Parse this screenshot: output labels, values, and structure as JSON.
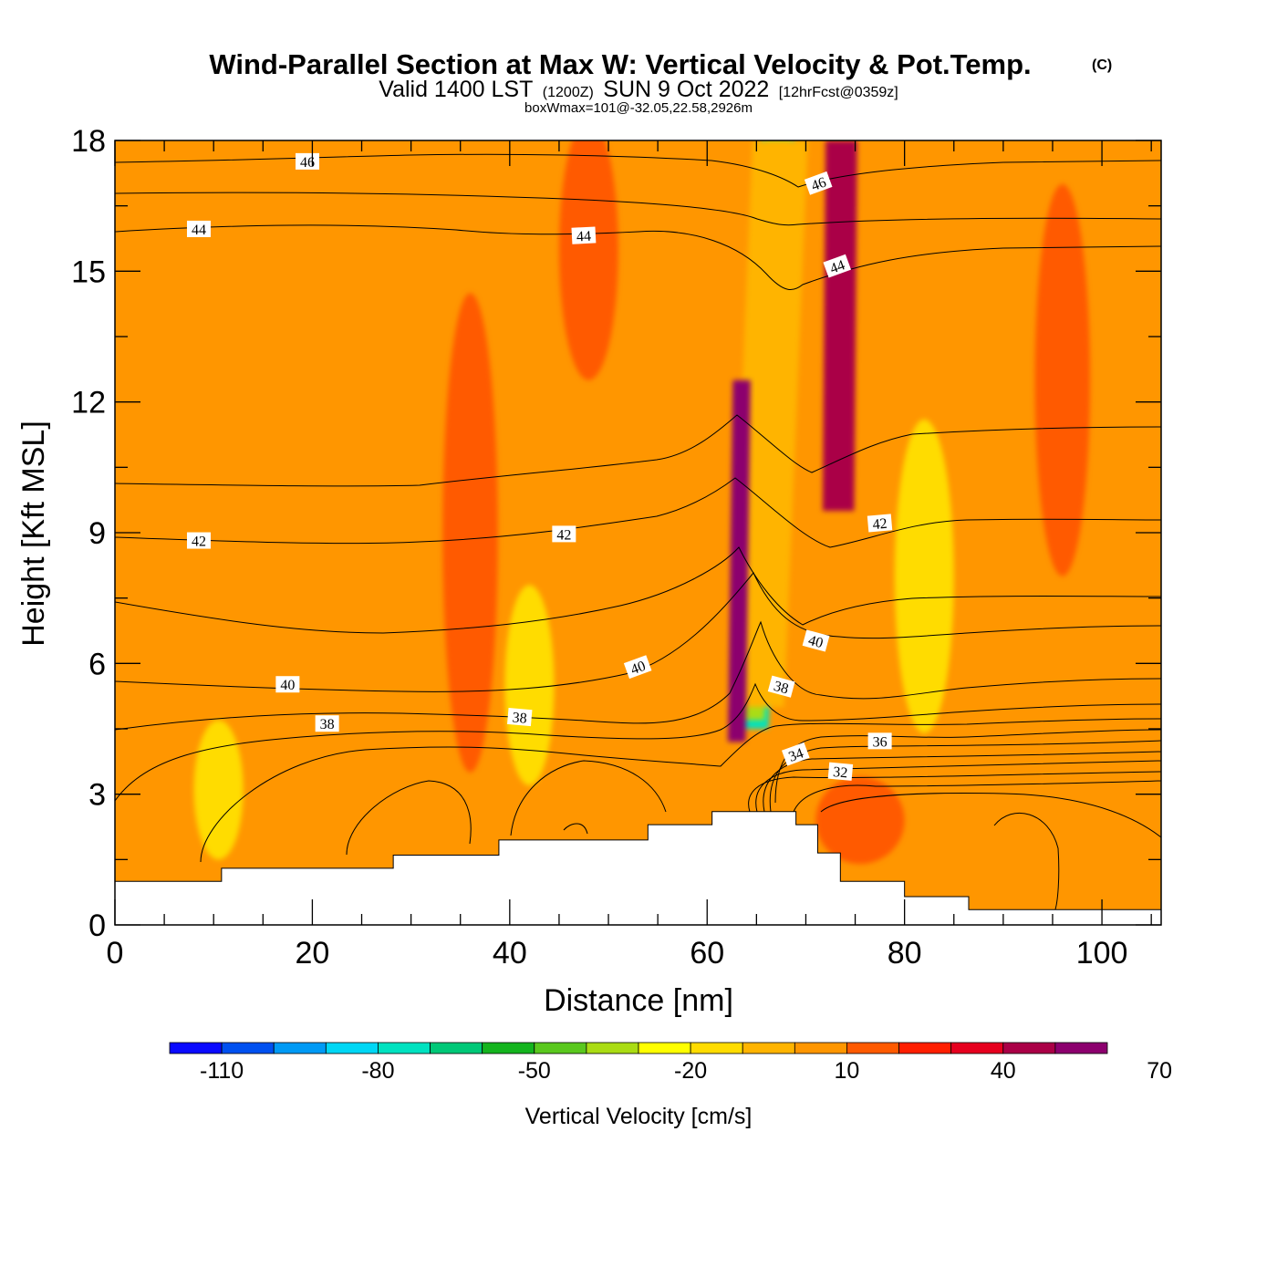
{
  "chart_data": {
    "type": "heatmap",
    "title": "Wind-Parallel Section at Max W: Vertical Velocity & Pot.Temp.",
    "copyright_mark": "(C)",
    "subtitle": {
      "prefix": "Valid 1400 LST",
      "utc": "(1200Z)",
      "date": "SUN 9 Oct 2022",
      "forecast": "[12hrFcst@0359z]"
    },
    "box_note": "boxWmax=101@-32.05,22.58,2926m",
    "xlabel": "Distance [nm]",
    "ylabel": "Height [Kft MSL]",
    "xlim": [
      0,
      106
    ],
    "ylim": [
      0,
      18
    ],
    "x_ticks": [
      "0",
      "20",
      "40",
      "60",
      "80",
      "100"
    ],
    "y_ticks": [
      "0",
      "3",
      "6",
      "9",
      "12",
      "15",
      "18"
    ],
    "x_tick_values": [
      0,
      20,
      40,
      60,
      80,
      100
    ],
    "y_tick_values": [
      0,
      3,
      6,
      9,
      12,
      15,
      18
    ],
    "colorbar": {
      "label": "Vertical Velocity [cm/s]",
      "levels_min": -120,
      "levels_step": 10,
      "tick_labels": [
        "-110",
        "-80",
        "-50",
        "-20",
        "10",
        "40",
        "70"
      ],
      "tick_values": [
        -110,
        -80,
        -50,
        -20,
        10,
        40,
        70
      ],
      "colors": [
        "#0a0aff",
        "#0050f0",
        "#009af5",
        "#00d7f5",
        "#00e2c0",
        "#00c878",
        "#14b41e",
        "#5ac81e",
        "#aadc14",
        "#ffff00",
        "#ffdc00",
        "#ffb400",
        "#ff9600",
        "#ff5a00",
        "#ff1e00",
        "#e6001e",
        "#aa0046",
        "#8c006e"
      ]
    },
    "theta_contour_labels": [
      {
        "text": "46",
        "x": 19.5,
        "y": 17.5,
        "angle": 0
      },
      {
        "text": "44",
        "x": 8.5,
        "y": 15.95,
        "angle": 0
      },
      {
        "text": "44",
        "x": 47.5,
        "y": 15.8,
        "angle": -3
      },
      {
        "text": "46",
        "x": 71.3,
        "y": 17.0,
        "angle": -20
      },
      {
        "text": "44",
        "x": 73.2,
        "y": 15.1,
        "angle": -20
      },
      {
        "text": "42",
        "x": 8.5,
        "y": 8.8,
        "angle": 0
      },
      {
        "text": "42",
        "x": 45.5,
        "y": 8.95,
        "angle": 0
      },
      {
        "text": "42",
        "x": 77.5,
        "y": 9.2,
        "angle": -5
      },
      {
        "text": "40",
        "x": 17.5,
        "y": 5.5,
        "angle": 0
      },
      {
        "text": "40",
        "x": 53.0,
        "y": 5.9,
        "angle": -20
      },
      {
        "text": "40",
        "x": 71.0,
        "y": 6.5,
        "angle": 15
      },
      {
        "text": "38",
        "x": 21.5,
        "y": 4.6,
        "angle": 0
      },
      {
        "text": "38",
        "x": 41.0,
        "y": 4.75,
        "angle": 5
      },
      {
        "text": "38",
        "x": 67.5,
        "y": 5.45,
        "angle": 15
      },
      {
        "text": "36",
        "x": 77.5,
        "y": 4.2,
        "angle": 0
      },
      {
        "text": "34",
        "x": 69.0,
        "y": 3.9,
        "angle": -20
      },
      {
        "text": "32",
        "x": 73.5,
        "y": 3.5,
        "angle": 5
      }
    ],
    "terrain": {
      "x": [
        0,
        10.8,
        10.8,
        28.2,
        28.2,
        38.9,
        38.9,
        54.0,
        54.0,
        60.5,
        60.5,
        69.0,
        69.0,
        71.2,
        71.2,
        73.5,
        73.5,
        80.0,
        80.0,
        86.5,
        86.5,
        106
      ],
      "height": [
        1.0,
        1.0,
        1.3,
        1.3,
        1.6,
        1.6,
        1.95,
        1.95,
        2.3,
        2.3,
        2.6,
        2.6,
        2.3,
        2.3,
        1.65,
        1.65,
        1.0,
        1.0,
        0.65,
        0.65,
        0.35,
        0.35
      ]
    },
    "w_field": [
      {
        "shape": "band",
        "w": -75,
        "x_bottom": 64.5,
        "x_top": 67.2,
        "half_width": 1.7,
        "y_range": [
          4.5,
          18
        ]
      },
      {
        "shape": "band",
        "w": -35,
        "x_bottom": 64.5,
        "x_top": 67.2,
        "half_width": 1.3,
        "y_range": [
          4.7,
          18
        ]
      },
      {
        "shape": "band",
        "w": -5,
        "x_bottom": 65.0,
        "x_top": 67.4,
        "half_width": 2.8,
        "y_range": [
          5.0,
          18
        ]
      },
      {
        "shape": "band",
        "w": 60,
        "x_bottom": 63.0,
        "x_top": 63.5,
        "half_width": 0.9,
        "y_range": [
          4.2,
          12.5
        ]
      },
      {
        "shape": "band",
        "w": 45,
        "x_bottom": 73.3,
        "x_top": 73.6,
        "half_width": 1.6,
        "y_range": [
          9.5,
          18
        ]
      },
      {
        "shape": "blob",
        "w": -15,
        "x": 82.0,
        "y": 8.0,
        "rx": 3.0,
        "ry": 3.6
      },
      {
        "shape": "blob",
        "w": -15,
        "x": 42.0,
        "y": 5.5,
        "rx": 2.5,
        "ry": 2.3
      },
      {
        "shape": "blob",
        "w": -15,
        "x": 10.5,
        "y": 3.1,
        "rx": 2.5,
        "ry": 1.6
      },
      {
        "shape": "blob",
        "w": 15,
        "x": 36.0,
        "y": 9.0,
        "rx": 2.8,
        "ry": 5.5
      },
      {
        "shape": "blob",
        "w": 15,
        "x": 96.0,
        "y": 12.5,
        "rx": 2.8,
        "ry": 4.5
      },
      {
        "shape": "blob",
        "w": 15,
        "x": 48.0,
        "y": 15.5,
        "rx": 3.0,
        "ry": 3.0
      },
      {
        "shape": "blob",
        "w": 15,
        "x": 75.5,
        "y": 2.4,
        "rx": 4.5,
        "ry": 1.0
      }
    ]
  }
}
